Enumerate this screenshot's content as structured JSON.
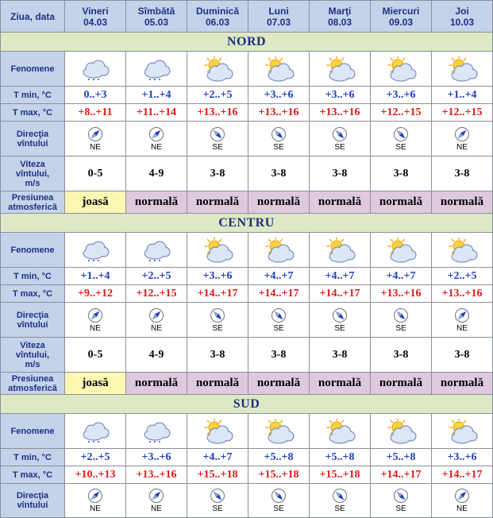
{
  "header": {
    "corner": "Ziua, data",
    "days": [
      {
        "name": "Vineri",
        "date": "04.03"
      },
      {
        "name": "Sîmbătă",
        "date": "05.03"
      },
      {
        "name": "Duminică",
        "date": "06.03"
      },
      {
        "name": "Luni",
        "date": "07.03"
      },
      {
        "name": "Marţi",
        "date": "08.03"
      },
      {
        "name": "Miercuri",
        "date": "09.03"
      },
      {
        "name": "Joi",
        "date": "10.03"
      }
    ]
  },
  "labels": {
    "fenomene": "Fenomene",
    "tmin": "T min, °C",
    "tmax": "T max, °C",
    "dir1": "Direcţia",
    "dir2": "vîntului",
    "speed1": "Viteza",
    "speed2": "vîntului,",
    "speed3": "m/s",
    "pres1": "Presiunea",
    "pres2": "atmosferică"
  },
  "icons": {
    "snow_cloud": "cloud-snow-icon",
    "partly_sunny": "partly-sunny-icon",
    "compass": "wind-direction-compass-icon"
  },
  "colors": {
    "header_bg": "#c5d3ea",
    "region_bg": "#dde9c4",
    "tmin_text": "#1f3fbe",
    "tmax_text": "#e01818",
    "pressure_low_bg": "#fcf8b4",
    "pressure_normal_bg": "#dfc9df"
  },
  "regions": [
    {
      "name": "NORD",
      "days": [
        {
          "icon": "snow",
          "tmin": "0..+3",
          "tmax": "+8..+11",
          "dir": "NE",
          "speed": "0-5",
          "pressure": "joasă"
        },
        {
          "icon": "snow",
          "tmin": "+1..+4",
          "tmax": "+11..+14",
          "dir": "NE",
          "speed": "4-9",
          "pressure": "normală"
        },
        {
          "icon": "sun",
          "tmin": "+2..+5",
          "tmax": "+13..+16",
          "dir": "SE",
          "speed": "3-8",
          "pressure": "normală"
        },
        {
          "icon": "sun",
          "tmin": "+3..+6",
          "tmax": "+13..+16",
          "dir": "SE",
          "speed": "3-8",
          "pressure": "normală"
        },
        {
          "icon": "sun",
          "tmin": "+3..+6",
          "tmax": "+13..+16",
          "dir": "SE",
          "speed": "3-8",
          "pressure": "normală"
        },
        {
          "icon": "sun",
          "tmin": "+3..+6",
          "tmax": "+12..+15",
          "dir": "SE",
          "speed": "3-8",
          "pressure": "normală"
        },
        {
          "icon": "sun",
          "tmin": "+1..+4",
          "tmax": "+12..+15",
          "dir": "NE",
          "speed": "3-8",
          "pressure": "normală"
        }
      ]
    },
    {
      "name": "CENTRU",
      "days": [
        {
          "icon": "snow",
          "tmin": "+1..+4",
          "tmax": "+9..+12",
          "dir": "NE",
          "speed": "0-5",
          "pressure": "joasă"
        },
        {
          "icon": "snow",
          "tmin": "+2..+5",
          "tmax": "+12..+15",
          "dir": "NE",
          "speed": "4-9",
          "pressure": "normală"
        },
        {
          "icon": "sun",
          "tmin": "+3..+6",
          "tmax": "+14..+17",
          "dir": "SE",
          "speed": "3-8",
          "pressure": "normală"
        },
        {
          "icon": "sun",
          "tmin": "+4..+7",
          "tmax": "+14..+17",
          "dir": "SE",
          "speed": "3-8",
          "pressure": "normală"
        },
        {
          "icon": "sun",
          "tmin": "+4..+7",
          "tmax": "+14..+17",
          "dir": "SE",
          "speed": "3-8",
          "pressure": "normală"
        },
        {
          "icon": "sun",
          "tmin": "+4..+7",
          "tmax": "+13..+16",
          "dir": "SE",
          "speed": "3-8",
          "pressure": "normală"
        },
        {
          "icon": "sun",
          "tmin": "+2..+5",
          "tmax": "+13..+16",
          "dir": "NE",
          "speed": "3-8",
          "pressure": "normală"
        }
      ]
    },
    {
      "name": "SUD",
      "days": [
        {
          "icon": "snow",
          "tmin": "+2..+5",
          "tmax": "+10..+13",
          "dir": "NE"
        },
        {
          "icon": "snow",
          "tmin": "+3..+6",
          "tmax": "+13..+16",
          "dir": "NE"
        },
        {
          "icon": "sun",
          "tmin": "+4..+7",
          "tmax": "+15..+18",
          "dir": "SE"
        },
        {
          "icon": "sun",
          "tmin": "+5..+8",
          "tmax": "+15..+18",
          "dir": "SE"
        },
        {
          "icon": "sun",
          "tmin": "+5..+8",
          "tmax": "+15..+18",
          "dir": "SE"
        },
        {
          "icon": "sun",
          "tmin": "+5..+8",
          "tmax": "+14..+17",
          "dir": "SE"
        },
        {
          "icon": "sun",
          "tmin": "+3..+6",
          "tmax": "+14..+17",
          "dir": "NE"
        }
      ]
    }
  ]
}
